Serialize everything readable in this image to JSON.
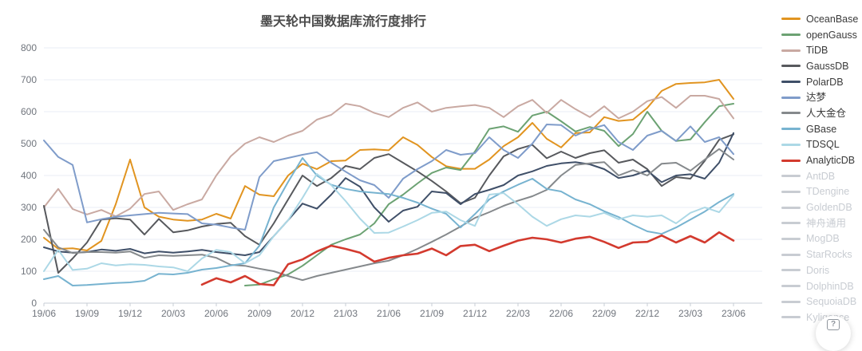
{
  "page": {
    "title": "墨天轮中国数据库流行度排行",
    "help_button_label": "?"
  },
  "legend": {
    "position": "right",
    "disabled_color": "#c8ccd2",
    "items": [
      {
        "label": "OceanBase",
        "color": "#e19420",
        "active": true
      },
      {
        "label": "openGauss",
        "color": "#6ca273",
        "active": true
      },
      {
        "label": "TiDB",
        "color": "#c9a9a2",
        "active": true
      },
      {
        "label": "GaussDB",
        "color": "#57595d",
        "active": true
      },
      {
        "label": "PolarDB",
        "color": "#3f4f68",
        "active": true
      },
      {
        "label": "达梦",
        "color": "#7f9cca",
        "active": true
      },
      {
        "label": "人大金仓",
        "color": "#85898c",
        "active": true
      },
      {
        "label": "GBase",
        "color": "#77b3d0",
        "active": true
      },
      {
        "label": "TDSQL",
        "color": "#acd8e6",
        "active": true
      },
      {
        "label": "AnalyticDB",
        "color": "#d33a2e",
        "active": true
      },
      {
        "label": "AntDB",
        "color": "#c8ccd2",
        "active": false
      },
      {
        "label": "TDengine",
        "color": "#c8ccd2",
        "active": false
      },
      {
        "label": "GoldenDB",
        "color": "#c8ccd2",
        "active": false
      },
      {
        "label": "神舟通用",
        "color": "#c8ccd2",
        "active": false
      },
      {
        "label": "MogDB",
        "color": "#c8ccd2",
        "active": false
      },
      {
        "label": "StarRocks",
        "color": "#c8ccd2",
        "active": false
      },
      {
        "label": "Doris",
        "color": "#c8ccd2",
        "active": false
      },
      {
        "label": "DolphinDB",
        "color": "#c8ccd2",
        "active": false
      },
      {
        "label": "SequoiaDB",
        "color": "#c8ccd2",
        "active": false
      },
      {
        "label": "Kyligence",
        "color": "#c8ccd2",
        "active": false
      }
    ]
  },
  "chart_data": {
    "type": "line",
    "title": "墨天轮中国数据库流行度排行",
    "xlabel": "",
    "ylabel": "",
    "ylim": [
      0,
      800
    ],
    "y_ticks": [
      0,
      100,
      200,
      300,
      400,
      500,
      600,
      700,
      800
    ],
    "grid": true,
    "legend_position": "right",
    "n_points": 49,
    "tick_every": 3,
    "x_tick_labels": [
      "19/06",
      "19/09",
      "19/12",
      "20/03",
      "20/06",
      "20/09",
      "20/12",
      "21/03",
      "21/06",
      "21/09",
      "21/12",
      "22/03",
      "22/06",
      "22/09",
      "22/12",
      "23/03",
      "23/06"
    ],
    "series": [
      {
        "name": "OceanBase",
        "color": "#e19420",
        "values": [
          205,
          170,
          172,
          165,
          195,
          310,
          450,
          300,
          271,
          262,
          258,
          262,
          280,
          265,
          367,
          340,
          335,
          400,
          437,
          420,
          445,
          447,
          480,
          482,
          479,
          520,
          496,
          458,
          429,
          421,
          421,
          450,
          492,
          520,
          565,
          515,
          488,
          533,
          535,
          583,
          571,
          575,
          612,
          665,
          687,
          690,
          692,
          700,
          640
        ]
      },
      {
        "name": "openGauss",
        "color": "#6ca273",
        "values": [
          null,
          null,
          null,
          null,
          null,
          null,
          null,
          null,
          null,
          null,
          null,
          null,
          null,
          null,
          55,
          58,
          75,
          90,
          117,
          150,
          183,
          200,
          215,
          250,
          310,
          340,
          375,
          408,
          425,
          417,
          475,
          546,
          554,
          537,
          588,
          600,
          570,
          538,
          552,
          540,
          492,
          530,
          600,
          540,
          508,
          513,
          567,
          617,
          625
        ]
      },
      {
        "name": "TiDB",
        "color": "#c9a9a2",
        "values": [
          300,
          358,
          295,
          278,
          292,
          272,
          296,
          342,
          350,
          292,
          310,
          325,
          400,
          460,
          500,
          520,
          505,
          525,
          540,
          575,
          590,
          625,
          617,
          596,
          583,
          612,
          629,
          600,
          612,
          617,
          621,
          612,
          583,
          617,
          637,
          596,
          637,
          608,
          583,
          617,
          579,
          600,
          633,
          646,
          612,
          650,
          650,
          640,
          579
        ]
      },
      {
        "name": "GaussDB",
        "color": "#57595d",
        "values": [
          305,
          95,
          140,
          190,
          262,
          266,
          262,
          215,
          264,
          222,
          228,
          240,
          248,
          252,
          210,
          183,
          250,
          325,
          400,
          367,
          392,
          430,
          420,
          455,
          467,
          440,
          413,
          383,
          350,
          313,
          330,
          400,
          460,
          483,
          496,
          454,
          475,
          455,
          470,
          479,
          440,
          450,
          420,
          367,
          395,
          390,
          446,
          512,
          529
        ]
      },
      {
        "name": "PolarDB",
        "color": "#3f4f68",
        "values": [
          175,
          162,
          158,
          160,
          168,
          164,
          170,
          156,
          162,
          158,
          162,
          167,
          160,
          155,
          150,
          160,
          210,
          260,
          312,
          296,
          340,
          392,
          365,
          300,
          255,
          290,
          302,
          350,
          345,
          310,
          342,
          355,
          370,
          400,
          413,
          430,
          438,
          442,
          435,
          420,
          392,
          400,
          415,
          379,
          400,
          404,
          390,
          440,
          533
        ]
      },
      {
        "name": "达梦",
        "color": "#7f9cca",
        "values": [
          510,
          458,
          433,
          253,
          263,
          271,
          275,
          279,
          283,
          281,
          279,
          250,
          246,
          237,
          230,
          395,
          445,
          455,
          465,
          473,
          440,
          412,
          385,
          370,
          330,
          390,
          420,
          445,
          480,
          465,
          470,
          520,
          480,
          455,
          500,
          560,
          558,
          525,
          545,
          558,
          505,
          480,
          525,
          540,
          508,
          554,
          505,
          520,
          467
        ]
      },
      {
        "name": "人大金仓",
        "color": "#85898c",
        "values": [
          230,
          175,
          157,
          160,
          160,
          158,
          162,
          142,
          150,
          148,
          150,
          152,
          142,
          120,
          117,
          108,
          100,
          85,
          72,
          85,
          95,
          105,
          115,
          125,
          133,
          150,
          170,
          192,
          215,
          240,
          267,
          285,
          305,
          321,
          335,
          355,
          400,
          433,
          438,
          442,
          400,
          417,
          400,
          437,
          440,
          415,
          450,
          483,
          450
        ]
      },
      {
        "name": "GBase",
        "color": "#77b3d0",
        "values": [
          75,
          85,
          55,
          57,
          60,
          63,
          65,
          70,
          92,
          90,
          95,
          105,
          110,
          118,
          125,
          180,
          300,
          380,
          455,
          400,
          371,
          358,
          350,
          346,
          342,
          330,
          315,
          296,
          280,
          237,
          279,
          325,
          350,
          371,
          390,
          358,
          350,
          325,
          310,
          288,
          270,
          246,
          225,
          217,
          237,
          262,
          287,
          317,
          342
        ]
      },
      {
        "name": "TDSQL",
        "color": "#acd8e6",
        "values": [
          100,
          167,
          104,
          108,
          125,
          118,
          122,
          120,
          115,
          112,
          100,
          140,
          167,
          160,
          125,
          150,
          210,
          260,
          330,
          405,
          370,
          320,
          265,
          220,
          221,
          240,
          260,
          283,
          287,
          260,
          242,
          340,
          345,
          310,
          271,
          242,
          263,
          275,
          271,
          283,
          263,
          275,
          271,
          275,
          250,
          283,
          300,
          285,
          338
        ]
      },
      {
        "name": "AnalyticDB",
        "color": "#d33a2e",
        "values": [
          null,
          null,
          null,
          null,
          null,
          null,
          null,
          null,
          null,
          null,
          null,
          58,
          78,
          65,
          85,
          60,
          56,
          122,
          137,
          162,
          180,
          170,
          158,
          130,
          142,
          150,
          155,
          171,
          150,
          179,
          183,
          163,
          180,
          196,
          205,
          200,
          190,
          202,
          208,
          192,
          173,
          190,
          192,
          212,
          190,
          210,
          190,
          222,
          196
        ]
      }
    ]
  },
  "axis_style": {
    "grid_color": "#e9eef5",
    "axis_color": "#c7cdd4",
    "tick_label_color": "#70757d"
  }
}
